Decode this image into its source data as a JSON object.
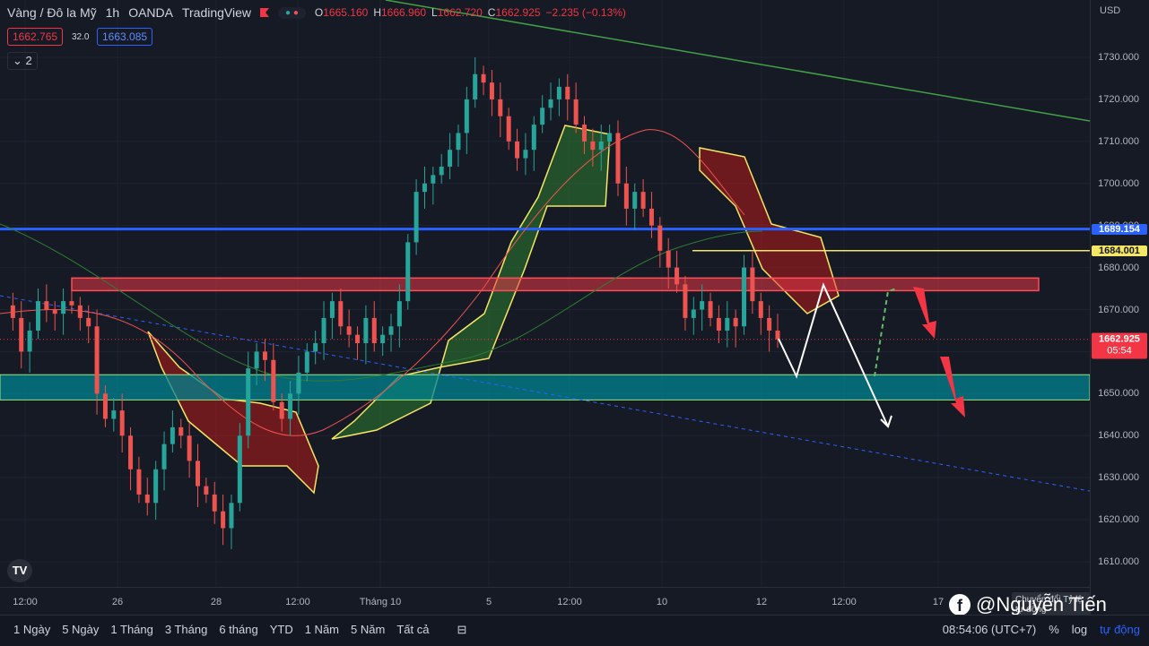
{
  "header": {
    "symbol": "Vàng / Đô la Mỹ",
    "interval": "1h",
    "broker": "OANDA",
    "platform": "TradingView",
    "ohlc": {
      "o_label": "O",
      "o": "1665.160",
      "h_label": "H",
      "h": "1666.960",
      "l_label": "L",
      "l": "1662.720",
      "c_label": "C",
      "c": "1662.925",
      "change": "−2.235 (−0.13%)"
    },
    "bid": "1662.765",
    "spread": "32.0",
    "ask": "1663.085",
    "indicators_count": "2"
  },
  "price_axis": {
    "currency": "USD",
    "ticks": [
      "1730.000",
      "1720.000",
      "1710.000",
      "1700.000",
      "1690.000",
      "1680.000",
      "1670.000",
      "1660.000",
      "1650.000",
      "1640.000",
      "1630.000",
      "1620.000",
      "1610.000"
    ],
    "level_blue": "1689.154",
    "level_yellow": "1684.001",
    "last_price": "1662.925",
    "countdown": "05:54"
  },
  "time_axis": {
    "ticks": [
      "12:00",
      "26",
      "28",
      "12:00",
      "Tháng 10",
      "5",
      "12:00",
      "10",
      "12",
      "12:00",
      "17"
    ]
  },
  "bottom_bar": {
    "ranges": [
      "1 Ngày",
      "5 Ngày",
      "1 Tháng",
      "3 Tháng",
      "6 tháng",
      "YTD",
      "1 Năm",
      "5 Năm",
      "Tất cả"
    ],
    "time": "08:54:06 (UTC+7)",
    "percent": "%",
    "log": "log",
    "auto": "tự động"
  },
  "overlay": {
    "convert_tooltip": "Chuyển đổi Tỷ lệ tự động",
    "watermark": "@Nguyễn Tiến"
  },
  "colors": {
    "background": "#161a25",
    "bull": "#26a69a",
    "bear": "#ef5350",
    "kumo_bull": "#2e7d32",
    "kumo_bear": "#b71c1c",
    "level_blue": "#2962ff",
    "level_yellow": "#f5e663",
    "zone_red": "#e53945",
    "zone_teal": "#00838f"
  },
  "chart_data": {
    "type": "candlestick",
    "title": "Vàng / Đô la Mỹ, 1h, OANDA",
    "ylim": [
      1606,
      1740
    ],
    "x_ticks": [
      "12:00",
      "26",
      "28",
      "12:00",
      "Tháng 10",
      "5",
      "12:00",
      "10",
      "12",
      "12:00",
      "17"
    ],
    "price_levels": [
      {
        "name": "resistance",
        "value": 1689.154
      },
      {
        "name": "level",
        "value": 1684.001
      },
      {
        "name": "last",
        "value": 1662.925
      }
    ],
    "zones": [
      {
        "name": "supply",
        "from": 1674.5,
        "to": 1677.5
      },
      {
        "name": "demand",
        "from": 1648.5,
        "to": 1654.5
      }
    ],
    "close_path": [
      1671,
      1668,
      1660,
      1665,
      1672,
      1670,
      1669,
      1672,
      1671,
      1668,
      1666,
      1650,
      1644,
      1646,
      1640,
      1632,
      1626,
      1624,
      1632,
      1638,
      1642,
      1640,
      1634,
      1628,
      1626,
      1622,
      1618,
      1624,
      1640,
      1656,
      1660,
      1658,
      1648,
      1644,
      1650,
      1655,
      1660,
      1662,
      1668,
      1672,
      1666,
      1664,
      1662,
      1668,
      1662,
      1664,
      1666,
      1672,
      1686,
      1698,
      1700,
      1702,
      1704,
      1708,
      1712,
      1720,
      1726,
      1724,
      1720,
      1716,
      1710,
      1706,
      1708,
      1714,
      1718,
      1720,
      1723,
      1720,
      1714,
      1710,
      1708,
      1710,
      1712,
      1700,
      1694,
      1698,
      1694,
      1690,
      1684,
      1680,
      1676,
      1668,
      1670,
      1672,
      1668,
      1665,
      1668,
      1666,
      1680,
      1672,
      1668,
      1665,
      1662.925
    ]
  }
}
